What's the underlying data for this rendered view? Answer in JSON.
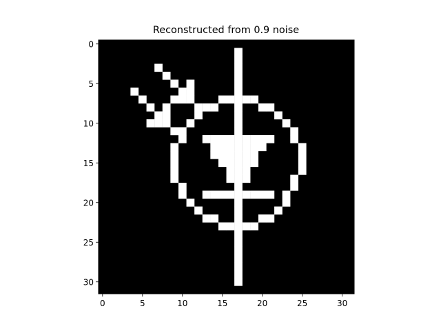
{
  "chart_data": {
    "type": "heatmap",
    "title": "Reconstructed from 0.9 noise",
    "xlabel": "",
    "ylabel": "",
    "grid": false,
    "colormap": "gray",
    "colors": {
      "on": "#ffffff",
      "off": "#000000",
      "frame": "#000000"
    },
    "size": [
      32,
      32
    ],
    "xlim": [
      -0.5,
      31.5
    ],
    "ylim": [
      31.5,
      -0.5
    ],
    "xticks": [
      0,
      5,
      10,
      15,
      20,
      25,
      30
    ],
    "yticks": [
      0,
      5,
      10,
      15,
      20,
      25,
      30
    ],
    "xtick_labels": [
      "0",
      "5",
      "10",
      "15",
      "20",
      "25",
      "30"
    ],
    "ytick_labels": [
      "0",
      "5",
      "10",
      "15",
      "20",
      "25",
      "30"
    ],
    "pixels_on": [
      [
        1,
        17
      ],
      [
        2,
        17
      ],
      [
        3,
        7
      ],
      [
        3,
        17
      ],
      [
        4,
        8
      ],
      [
        4,
        17
      ],
      [
        5,
        9
      ],
      [
        5,
        11
      ],
      [
        5,
        17
      ],
      [
        6,
        4
      ],
      [
        6,
        10
      ],
      [
        6,
        11
      ],
      [
        6,
        17
      ],
      [
        7,
        5
      ],
      [
        7,
        9
      ],
      [
        7,
        10
      ],
      [
        7,
        11
      ],
      [
        7,
        15
      ],
      [
        7,
        16
      ],
      [
        7,
        17
      ],
      [
        7,
        18
      ],
      [
        7,
        19
      ],
      [
        8,
        6
      ],
      [
        8,
        8
      ],
      [
        8,
        12
      ],
      [
        8,
        13
      ],
      [
        8,
        14
      ],
      [
        8,
        17
      ],
      [
        8,
        20
      ],
      [
        8,
        21
      ],
      [
        9,
        7
      ],
      [
        9,
        8
      ],
      [
        9,
        12
      ],
      [
        9,
        17
      ],
      [
        9,
        22
      ],
      [
        10,
        6
      ],
      [
        10,
        7
      ],
      [
        10,
        8
      ],
      [
        10,
        11
      ],
      [
        10,
        17
      ],
      [
        10,
        23
      ],
      [
        11,
        9
      ],
      [
        11,
        10
      ],
      [
        11,
        17
      ],
      [
        11,
        24
      ],
      [
        12,
        10
      ],
      [
        12,
        13
      ],
      [
        12,
        14
      ],
      [
        12,
        15
      ],
      [
        12,
        16
      ],
      [
        12,
        17
      ],
      [
        12,
        18
      ],
      [
        12,
        19
      ],
      [
        12,
        20
      ],
      [
        12,
        21
      ],
      [
        12,
        24
      ],
      [
        13,
        9
      ],
      [
        13,
        14
      ],
      [
        13,
        15
      ],
      [
        13,
        16
      ],
      [
        13,
        17
      ],
      [
        13,
        18
      ],
      [
        13,
        19
      ],
      [
        13,
        20
      ],
      [
        13,
        25
      ],
      [
        14,
        9
      ],
      [
        14,
        14
      ],
      [
        14,
        15
      ],
      [
        14,
        16
      ],
      [
        14,
        17
      ],
      [
        14,
        18
      ],
      [
        14,
        19
      ],
      [
        14,
        25
      ],
      [
        15,
        9
      ],
      [
        15,
        15
      ],
      [
        15,
        16
      ],
      [
        15,
        17
      ],
      [
        15,
        18
      ],
      [
        15,
        19
      ],
      [
        15,
        25
      ],
      [
        16,
        9
      ],
      [
        16,
        16
      ],
      [
        16,
        17
      ],
      [
        16,
        18
      ],
      [
        16,
        25
      ],
      [
        17,
        9
      ],
      [
        17,
        16
      ],
      [
        17,
        17
      ],
      [
        17,
        18
      ],
      [
        17,
        24
      ],
      [
        18,
        10
      ],
      [
        18,
        17
      ],
      [
        18,
        24
      ],
      [
        19,
        10
      ],
      [
        19,
        13
      ],
      [
        19,
        14
      ],
      [
        19,
        15
      ],
      [
        19,
        16
      ],
      [
        19,
        17
      ],
      [
        19,
        18
      ],
      [
        19,
        19
      ],
      [
        19,
        20
      ],
      [
        19,
        21
      ],
      [
        19,
        23
      ],
      [
        20,
        11
      ],
      [
        20,
        17
      ],
      [
        20,
        23
      ],
      [
        21,
        12
      ],
      [
        21,
        17
      ],
      [
        21,
        22
      ],
      [
        22,
        13
      ],
      [
        22,
        14
      ],
      [
        22,
        17
      ],
      [
        22,
        20
      ],
      [
        22,
        21
      ],
      [
        23,
        15
      ],
      [
        23,
        16
      ],
      [
        23,
        17
      ],
      [
        23,
        18
      ],
      [
        23,
        19
      ],
      [
        24,
        17
      ],
      [
        25,
        17
      ],
      [
        26,
        17
      ],
      [
        27,
        17
      ],
      [
        28,
        17
      ],
      [
        29,
        17
      ],
      [
        30,
        17
      ]
    ]
  }
}
